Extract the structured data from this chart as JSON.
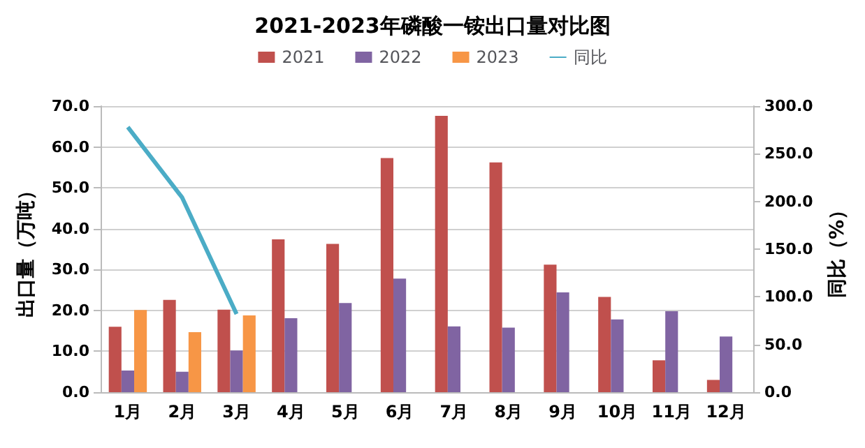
{
  "chart_data": {
    "type": "bar",
    "title": "2021-2023年磷酸一铵出口量对比图",
    "ylabel": "出口量（万吨）",
    "y2label": "同比（%）",
    "categories": [
      "1月",
      "2月",
      "3月",
      "4月",
      "5月",
      "6月",
      "7月",
      "8月",
      "9月",
      "10月",
      "11月",
      "12月"
    ],
    "series": [
      {
        "name": "2021",
        "color": "#c0504d",
        "values": [
          16.0,
          22.6,
          20.2,
          37.4,
          36.3,
          57.3,
          67.6,
          56.2,
          31.2,
          23.3,
          7.8,
          3.0
        ]
      },
      {
        "name": "2022",
        "color": "#8064a2",
        "values": [
          5.3,
          5.0,
          10.2,
          18.1,
          21.8,
          27.8,
          16.1,
          15.8,
          24.4,
          17.8,
          19.8,
          13.6
        ]
      },
      {
        "name": "2023",
        "color": "#f79646",
        "values": [
          20.1,
          14.7,
          18.8,
          null,
          null,
          null,
          null,
          null,
          null,
          null,
          null,
          null
        ]
      },
      {
        "name": "同比",
        "type": "line",
        "axis": "y2",
        "color": "#4bacc6",
        "values": [
          278,
          204,
          82,
          null,
          null,
          null,
          null,
          null,
          null,
          null,
          null,
          null
        ]
      }
    ],
    "ylim": [
      0,
      70
    ],
    "yticks": [
      {
        "value": 0,
        "label": "0.0"
      },
      {
        "value": 10,
        "label": "10.0"
      },
      {
        "value": 20,
        "label": "20.0"
      },
      {
        "value": 30,
        "label": "30.0"
      },
      {
        "value": 40,
        "label": "40.0"
      },
      {
        "value": 50,
        "label": "50.0"
      },
      {
        "value": 60,
        "label": "60.0"
      },
      {
        "value": 70,
        "label": "70.0"
      }
    ],
    "y2lim": [
      0,
      300
    ],
    "y2ticks": [
      {
        "value": 0,
        "label": "0.0"
      },
      {
        "value": 50,
        "label": "50.0"
      },
      {
        "value": 100,
        "label": "100.0"
      },
      {
        "value": 150,
        "label": "150.0"
      },
      {
        "value": 200,
        "label": "200.0"
      },
      {
        "value": 250,
        "label": "250.0"
      },
      {
        "value": 300,
        "label": "300.0"
      }
    ],
    "grid": "y",
    "legend": "top",
    "marker": "none"
  }
}
